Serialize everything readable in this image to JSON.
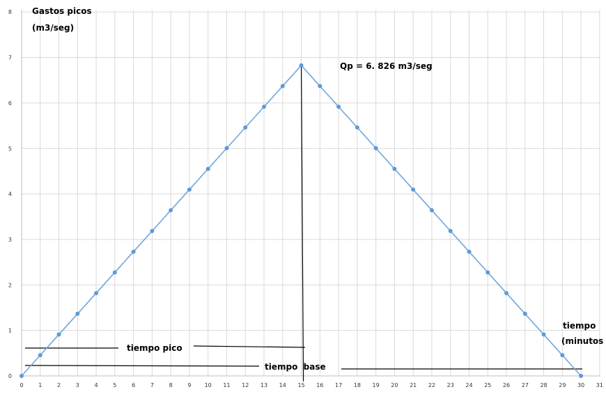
{
  "chart_data": {
    "type": "line",
    "x": [
      0,
      1,
      2,
      3,
      4,
      5,
      6,
      7,
      8,
      9,
      10,
      11,
      12,
      13,
      14,
      15,
      16,
      17,
      18,
      19,
      20,
      21,
      22,
      23,
      24,
      25,
      26,
      27,
      28,
      29,
      30
    ],
    "values": [
      0,
      0.455,
      0.91,
      1.365,
      1.82,
      2.275,
      2.73,
      3.185,
      3.641,
      4.096,
      4.551,
      5.006,
      5.461,
      5.916,
      6.371,
      6.826,
      6.371,
      5.916,
      5.461,
      5.006,
      4.551,
      4.096,
      3.641,
      3.185,
      2.73,
      2.275,
      1.82,
      1.365,
      0.91,
      0.455,
      0
    ],
    "xlim": [
      0,
      31
    ],
    "ylim": [
      0,
      8
    ],
    "x_ticks": [
      "0",
      "1",
      "2",
      "3",
      "4",
      "5",
      "6",
      "7",
      "8",
      "9",
      "10",
      "11",
      "12",
      "13",
      "14",
      "15",
      "16",
      "17",
      "18",
      "19",
      "20",
      "21",
      "22",
      "23",
      "24",
      "25",
      "26",
      "27",
      "28",
      "29",
      "30",
      "31"
    ],
    "y_ticks": [
      "0",
      "1",
      "2",
      "3",
      "4",
      "5",
      "6",
      "7",
      "8"
    ],
    "grid": true,
    "series_color": "#6fa6dc",
    "marker_color": "#5b9bd5",
    "ylabel_line1": "Gastos picos",
    "ylabel_line2": "(m3/seg)",
    "xlabel_line1": "tiempo",
    "xlabel_line2": "(minutos",
    "peak_label": "Qp = 6. 826 m3/seg",
    "tiempo_pico_label": "tiempo pico",
    "tiempo_base_label": "tiempo  base"
  }
}
